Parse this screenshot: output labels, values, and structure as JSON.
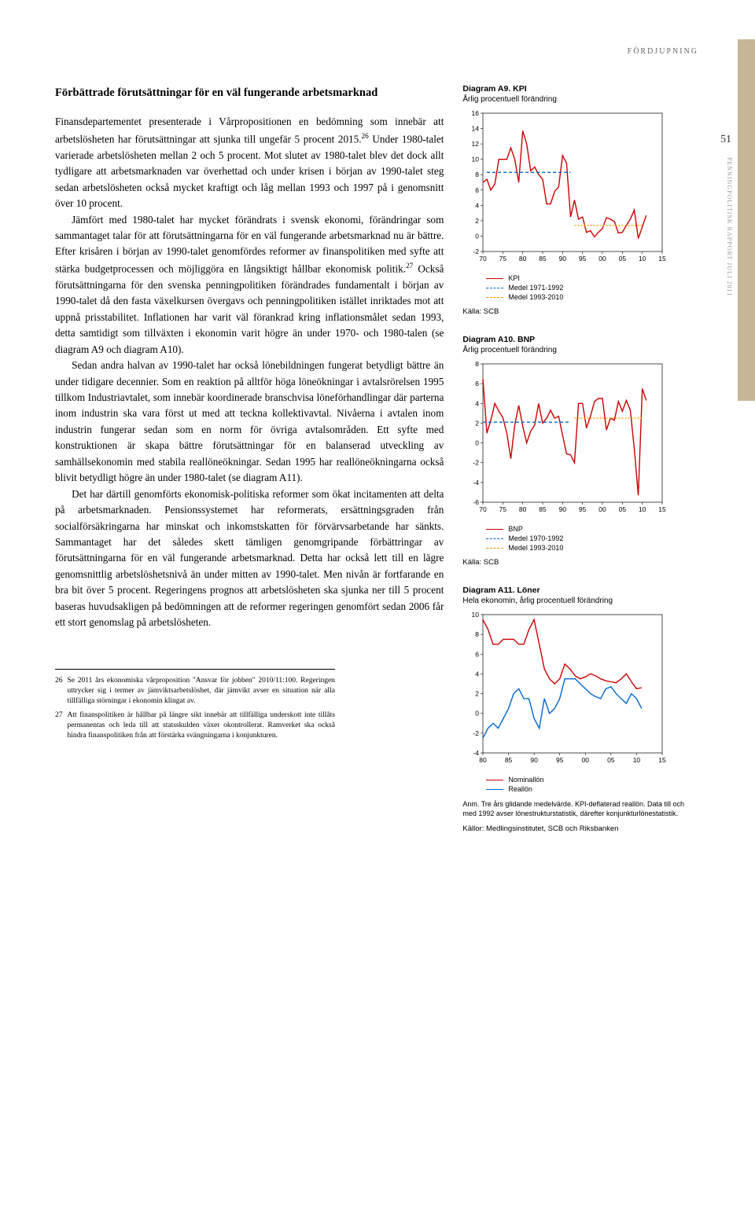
{
  "page": {
    "category": "FÖRDJUPNING",
    "number": "51",
    "side_text": "PENNINGPOLITISK RAPPORT JULI 2011"
  },
  "main": {
    "heading": "Förbättrade förutsättningar för en väl fungerande arbetsmarknad",
    "p1": "Finansdepartementet presenterade i Vårpropositionen en bedömning som innebär att arbetslösheten har förutsättningar att sjunka till ungefär 5 procent 2015.",
    "p1b": " Under 1980-talet varierade arbetslösheten mellan 2 och 5 procent. Mot slutet av 1980-talet blev det dock allt tydligare att arbetsmarknaden var överhettad och under krisen i början av 1990-talet steg sedan arbetslösheten också mycket kraftigt och låg mellan 1993 och 1997 på i genomsnitt över 10 procent.",
    "p2": "Jämfört med 1980-talet har mycket förändrats i svensk ekonomi, förändringar som sammantaget talar för att förutsättningarna för en väl fungerande arbetsmarknad nu är bättre. Efter krisåren i början av 1990-talet genomfördes reformer av finanspolitiken med syfte att stärka budgetprocessen och möjliggöra en långsiktigt hållbar ekonomisk politik.",
    "p2b": " Också förutsättningarna för den svenska penningpolitiken förändrades fundamentalt i början av 1990-talet då den fasta växelkursen övergavs och penningpolitiken istället inriktades mot att uppnå prisstabilitet. Inflationen har varit väl förankrad kring inflationsmålet sedan 1993, detta samtidigt som tillväxten i ekonomin varit högre än under 1970- och 1980-talen (se diagram A9 och diagram A10).",
    "p3": "Sedan andra halvan av 1990-talet har också lönebildningen fungerat betydligt bättre än under tidigare decennier. Som en reaktion på alltför höga löneökningar i avtalsrörelsen 1995 tillkom Industriavtalet, som innebär koordinerade branschvisa löneförhandlingar där parterna inom industrin ska vara först ut med att teckna kollektivavtal. Nivåerna i avtalen inom industrin fungerar sedan som en norm för övriga avtalsområden. Ett syfte med konstruktionen är skapa bättre förutsättningar för en balanserad utveckling av samhällsekonomin med stabila reallöneökningar. Sedan 1995 har reallöneökningarna också blivit betydligt högre än under 1980-talet (se diagram A11).",
    "p4": "Det har därtill genomförts ekonomisk-politiska reformer som ökat incitamenten att delta på arbetsmarknaden. Pensionssystemet har reformerats, ersättningsgraden från socialförsäkringarna har minskat och inkomstskatten för förvärvsarbetande har sänkts. Sammantaget har det således skett tämligen genomgripande förbättringar av förutsättningarna för en väl fungerande arbetsmarknad. Detta har också lett till en lägre genomsnittlig arbetslöshetsnivå än under mitten av 1990-talet. Men nivån är fortfarande en bra bit över 5 procent. Regeringens prognos att arbetslösheten ska sjunka ner till 5 procent baseras huvudsakligen på bedömningen att de reformer regeringen genomfört sedan 2006 får ett stort genomslag på arbetslösheten.",
    "fn26_num": "26",
    "fn26": "Se 2011 års ekonomiska vårproposition \"Ansvar för jobben\" 2010/11:100. Regeringen uttrycker sig i termer av jämviktsarbetslöshet, där jämvikt avser en situation när alla tillfälliga störningar i ekonomin klingat av.",
    "fn27_num": "27",
    "fn27": "Att finanspolitiken är hållbar på längre sikt innebär att tillfälliga underskott inte tillåts permanentas och leda till att statsskulden växer okontrollerat. Ramverket ska också hindra finanspolitiken från att förstärka svängningarna i konjunkturen."
  },
  "charts": {
    "a9": {
      "title_b": "Diagram A9. KPI",
      "subtitle": "Årlig procentuell förändring",
      "type": "line",
      "ylim": [
        -2,
        16
      ],
      "ytick_step": 2,
      "xlim": [
        70,
        15
      ],
      "xticks": [
        70,
        75,
        80,
        85,
        90,
        95,
        0,
        5,
        10,
        15
      ],
      "series": [
        {
          "name": "KPI",
          "color": "#cc0000",
          "dash": "0",
          "data": [
            [
              70,
              7
            ],
            [
              71,
              7.4
            ],
            [
              72,
              6
            ],
            [
              73,
              6.8
            ],
            [
              74,
              10
            ],
            [
              75,
              10
            ],
            [
              76,
              10
            ],
            [
              77,
              11.5
            ],
            [
              78,
              10
            ],
            [
              79,
              7
            ],
            [
              80,
              13.7
            ],
            [
              81,
              12
            ],
            [
              82,
              8.5
            ],
            [
              83,
              9
            ],
            [
              84,
              8
            ],
            [
              85,
              7.4
            ],
            [
              86,
              4.2
            ],
            [
              87,
              4.2
            ],
            [
              88,
              5.8
            ],
            [
              89,
              6.4
            ],
            [
              90,
              10.5
            ],
            [
              91,
              9.5
            ],
            [
              92,
              2.5
            ],
            [
              93,
              4.7
            ],
            [
              94,
              2.2
            ],
            [
              95,
              2.5
            ],
            [
              96,
              0.5
            ],
            [
              97,
              0.7
            ],
            [
              98,
              -0.1
            ],
            [
              99,
              0.5
            ],
            [
              100,
              1
            ],
            [
              101,
              2.4
            ],
            [
              102,
              2.2
            ],
            [
              103,
              1.9
            ],
            [
              104,
              0.4
            ],
            [
              105,
              0.5
            ],
            [
              106,
              1.4
            ],
            [
              107,
              2.2
            ],
            [
              108,
              3.4
            ],
            [
              109,
              -0.3
            ],
            [
              110,
              1.2
            ],
            [
              111,
              2.7
            ]
          ]
        },
        {
          "name": "Medel 1971-1992",
          "color": "#0066cc",
          "dash": "4 3",
          "data": [
            [
              71,
              8.3
            ],
            [
              92,
              8.3
            ]
          ]
        },
        {
          "name": "Medel 1993-2010",
          "color": "#ff9900",
          "dash": "2 2",
          "data": [
            [
              93,
              1.4
            ],
            [
              110,
              1.4
            ]
          ]
        }
      ],
      "legend": [
        "KPI",
        "Medel 1971-1992",
        "Medel 1993-2010"
      ],
      "legend_colors": [
        "#cc0000",
        "#0066cc",
        "#ff9900"
      ],
      "legend_dash": [
        "0",
        "4 3",
        "2 2"
      ],
      "source": "Källa: SCB"
    },
    "a10": {
      "title_b": "Diagram A10. BNP",
      "subtitle": "Årlig procentuell förändring",
      "type": "line",
      "ylim": [
        -6,
        8
      ],
      "ytick_step": 2,
      "xlim": [
        70,
        15
      ],
      "xticks": [
        70,
        75,
        80,
        85,
        90,
        95,
        0,
        5,
        10,
        15
      ],
      "series": [
        {
          "name": "BNP",
          "color": "#cc0000",
          "dash": "0",
          "data": [
            [
              70,
              6.5
            ],
            [
              71,
              1
            ],
            [
              72,
              2.3
            ],
            [
              73,
              4
            ],
            [
              74,
              3.2
            ],
            [
              75,
              2.6
            ],
            [
              76,
              1
            ],
            [
              77,
              -1.6
            ],
            [
              78,
              1.8
            ],
            [
              79,
              3.8
            ],
            [
              80,
              1.7
            ],
            [
              81,
              0
            ],
            [
              82,
              1.2
            ],
            [
              83,
              1.8
            ],
            [
              84,
              4
            ],
            [
              85,
              2
            ],
            [
              86,
              2.5
            ],
            [
              87,
              3.3
            ],
            [
              88,
              2.5
            ],
            [
              89,
              2.7
            ],
            [
              90,
              0.8
            ],
            [
              91,
              -1.1
            ],
            [
              92,
              -1.2
            ],
            [
              93,
              -2
            ],
            [
              94,
              4
            ],
            [
              95,
              4
            ],
            [
              96,
              1.5
            ],
            [
              97,
              2.7
            ],
            [
              98,
              4.2
            ],
            [
              99,
              4.5
            ],
            [
              100,
              4.5
            ],
            [
              101,
              1.3
            ],
            [
              102,
              2.5
            ],
            [
              103,
              2.3
            ],
            [
              104,
              4.2
            ],
            [
              105,
              3.2
            ],
            [
              106,
              4.3
            ],
            [
              107,
              3.3
            ],
            [
              108,
              -0.6
            ],
            [
              109,
              -5.3
            ],
            [
              110,
              5.5
            ],
            [
              111,
              4.3
            ]
          ]
        },
        {
          "name": "Medel 1970-1992",
          "color": "#0066cc",
          "dash": "4 3",
          "data": [
            [
              70,
              2.1
            ],
            [
              92,
              2.1
            ]
          ]
        },
        {
          "name": "Medel 1993-2010",
          "color": "#ff9900",
          "dash": "2 2",
          "data": [
            [
              93,
              2.5
            ],
            [
              110,
              2.5
            ]
          ]
        }
      ],
      "legend": [
        "BNP",
        "Medel 1970-1992",
        "Medel 1993-2010"
      ],
      "legend_colors": [
        "#cc0000",
        "#0066cc",
        "#ff9900"
      ],
      "legend_dash": [
        "0",
        "4 3",
        "2 2"
      ],
      "source": "Källa: SCB"
    },
    "a11": {
      "title_b": "Diagram A11. Löner",
      "subtitle": "Hela ekonomin, årlig procentuell förändring",
      "type": "line",
      "ylim": [
        -4,
        10
      ],
      "ytick_step": 2,
      "xlim": [
        80,
        15
      ],
      "xticks": [
        80,
        85,
        90,
        95,
        0,
        5,
        10,
        15
      ],
      "series": [
        {
          "name": "Nominallön",
          "color": "#cc0000",
          "dash": "0",
          "data": [
            [
              80,
              9.5
            ],
            [
              81,
              8.5
            ],
            [
              82,
              7
            ],
            [
              83,
              7
            ],
            [
              84,
              7.5
            ],
            [
              85,
              7.5
            ],
            [
              86,
              7.5
            ],
            [
              87,
              7
            ],
            [
              88,
              7
            ],
            [
              89,
              8.5
            ],
            [
              90,
              9.5
            ],
            [
              91,
              7
            ],
            [
              92,
              4.5
            ],
            [
              93,
              3.5
            ],
            [
              94,
              3
            ],
            [
              95,
              3.5
            ],
            [
              96,
              5
            ],
            [
              97,
              4.5
            ],
            [
              98,
              3.8
            ],
            [
              99,
              3.5
            ],
            [
              100,
              3.7
            ],
            [
              101,
              4
            ],
            [
              102,
              3.8
            ],
            [
              103,
              3.5
            ],
            [
              104,
              3.3
            ],
            [
              105,
              3.2
            ],
            [
              106,
              3.1
            ],
            [
              107,
              3.5
            ],
            [
              108,
              4
            ],
            [
              109,
              3.2
            ],
            [
              110,
              2.5
            ],
            [
              111,
              2.6
            ]
          ]
        },
        {
          "name": "Reallön",
          "color": "#0066cc",
          "dash": "0",
          "data": [
            [
              80,
              -2.5
            ],
            [
              81,
              -1.5
            ],
            [
              82,
              -1
            ],
            [
              83,
              -1.5
            ],
            [
              84,
              -0.5
            ],
            [
              85,
              0.5
            ],
            [
              86,
              2
            ],
            [
              87,
              2.5
            ],
            [
              88,
              1.5
            ],
            [
              89,
              1.5
            ],
            [
              90,
              -0.5
            ],
            [
              91,
              -1.5
            ],
            [
              92,
              1.5
            ],
            [
              93,
              0
            ],
            [
              94,
              0.5
            ],
            [
              95,
              1.5
            ],
            [
              96,
              3.5
            ],
            [
              97,
              3.5
            ],
            [
              98,
              3.5
            ],
            [
              99,
              3
            ],
            [
              100,
              2.5
            ],
            [
              101,
              2
            ],
            [
              102,
              1.7
            ],
            [
              103,
              1.5
            ],
            [
              104,
              2.5
            ],
            [
              105,
              2.7
            ],
            [
              106,
              2
            ],
            [
              107,
              1.5
            ],
            [
              108,
              1
            ],
            [
              109,
              2
            ],
            [
              110,
              1.5
            ],
            [
              111,
              0.5
            ]
          ]
        }
      ],
      "legend": [
        "Nominallön",
        "Reallön"
      ],
      "legend_colors": [
        "#cc0000",
        "#0066cc"
      ],
      "legend_dash": [
        "0",
        "0"
      ],
      "source": "Källor: Medlingsinstitutet, SCB och Riksbanken",
      "note": "Anm. Tre års glidande medelvärde. KPI-deflaterad reallön. Data till och med 1992 avser lönestrukturstatistik, därefter konjunkturlönestatistik."
    }
  }
}
